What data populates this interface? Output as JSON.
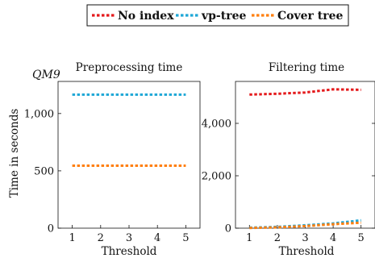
{
  "dataset_label": "QM9",
  "legend": [
    {
      "label": "No index",
      "color": "#e41a1c"
    },
    {
      "label": "vp-tree",
      "color": "#1fa7d6"
    },
    {
      "label": "Cover tree",
      "color": "#ff7f0e"
    }
  ],
  "chart_data": [
    {
      "type": "line",
      "title": "Preprocessing time",
      "xlabel": "Threshold",
      "ylabel": "Time in seconds",
      "x": [
        1,
        2,
        3,
        4,
        5
      ],
      "xlim": [
        0.5,
        5.5
      ],
      "ylim": [
        0,
        1280
      ],
      "yticks": [
        0,
        500,
        1000
      ],
      "ytick_labels": [
        "0",
        "500",
        "1,000"
      ],
      "xticks": [
        1,
        2,
        3,
        4,
        5
      ],
      "series": [
        {
          "name": "vp-tree",
          "values": [
            1165,
            1165,
            1165,
            1165,
            1165
          ]
        },
        {
          "name": "Cover tree",
          "values": [
            545,
            545,
            545,
            545,
            545
          ]
        }
      ]
    },
    {
      "type": "line",
      "title": "Filtering time",
      "xlabel": "Threshold",
      "ylabel": "",
      "x": [
        1,
        2,
        3,
        4,
        5
      ],
      "xlim": [
        0.5,
        5.5
      ],
      "ylim": [
        0,
        5600
      ],
      "yticks": [
        0,
        2000,
        4000
      ],
      "ytick_labels": [
        "0",
        "2,000",
        "4,000"
      ],
      "xticks": [
        1,
        2,
        3,
        4,
        5
      ],
      "series": [
        {
          "name": "No index",
          "values": [
            5100,
            5130,
            5180,
            5300,
            5280
          ]
        },
        {
          "name": "vp-tree",
          "values": [
            20,
            50,
            110,
            180,
            300
          ]
        },
        {
          "name": "Cover tree",
          "values": [
            10,
            30,
            80,
            150,
            210
          ]
        }
      ]
    }
  ]
}
